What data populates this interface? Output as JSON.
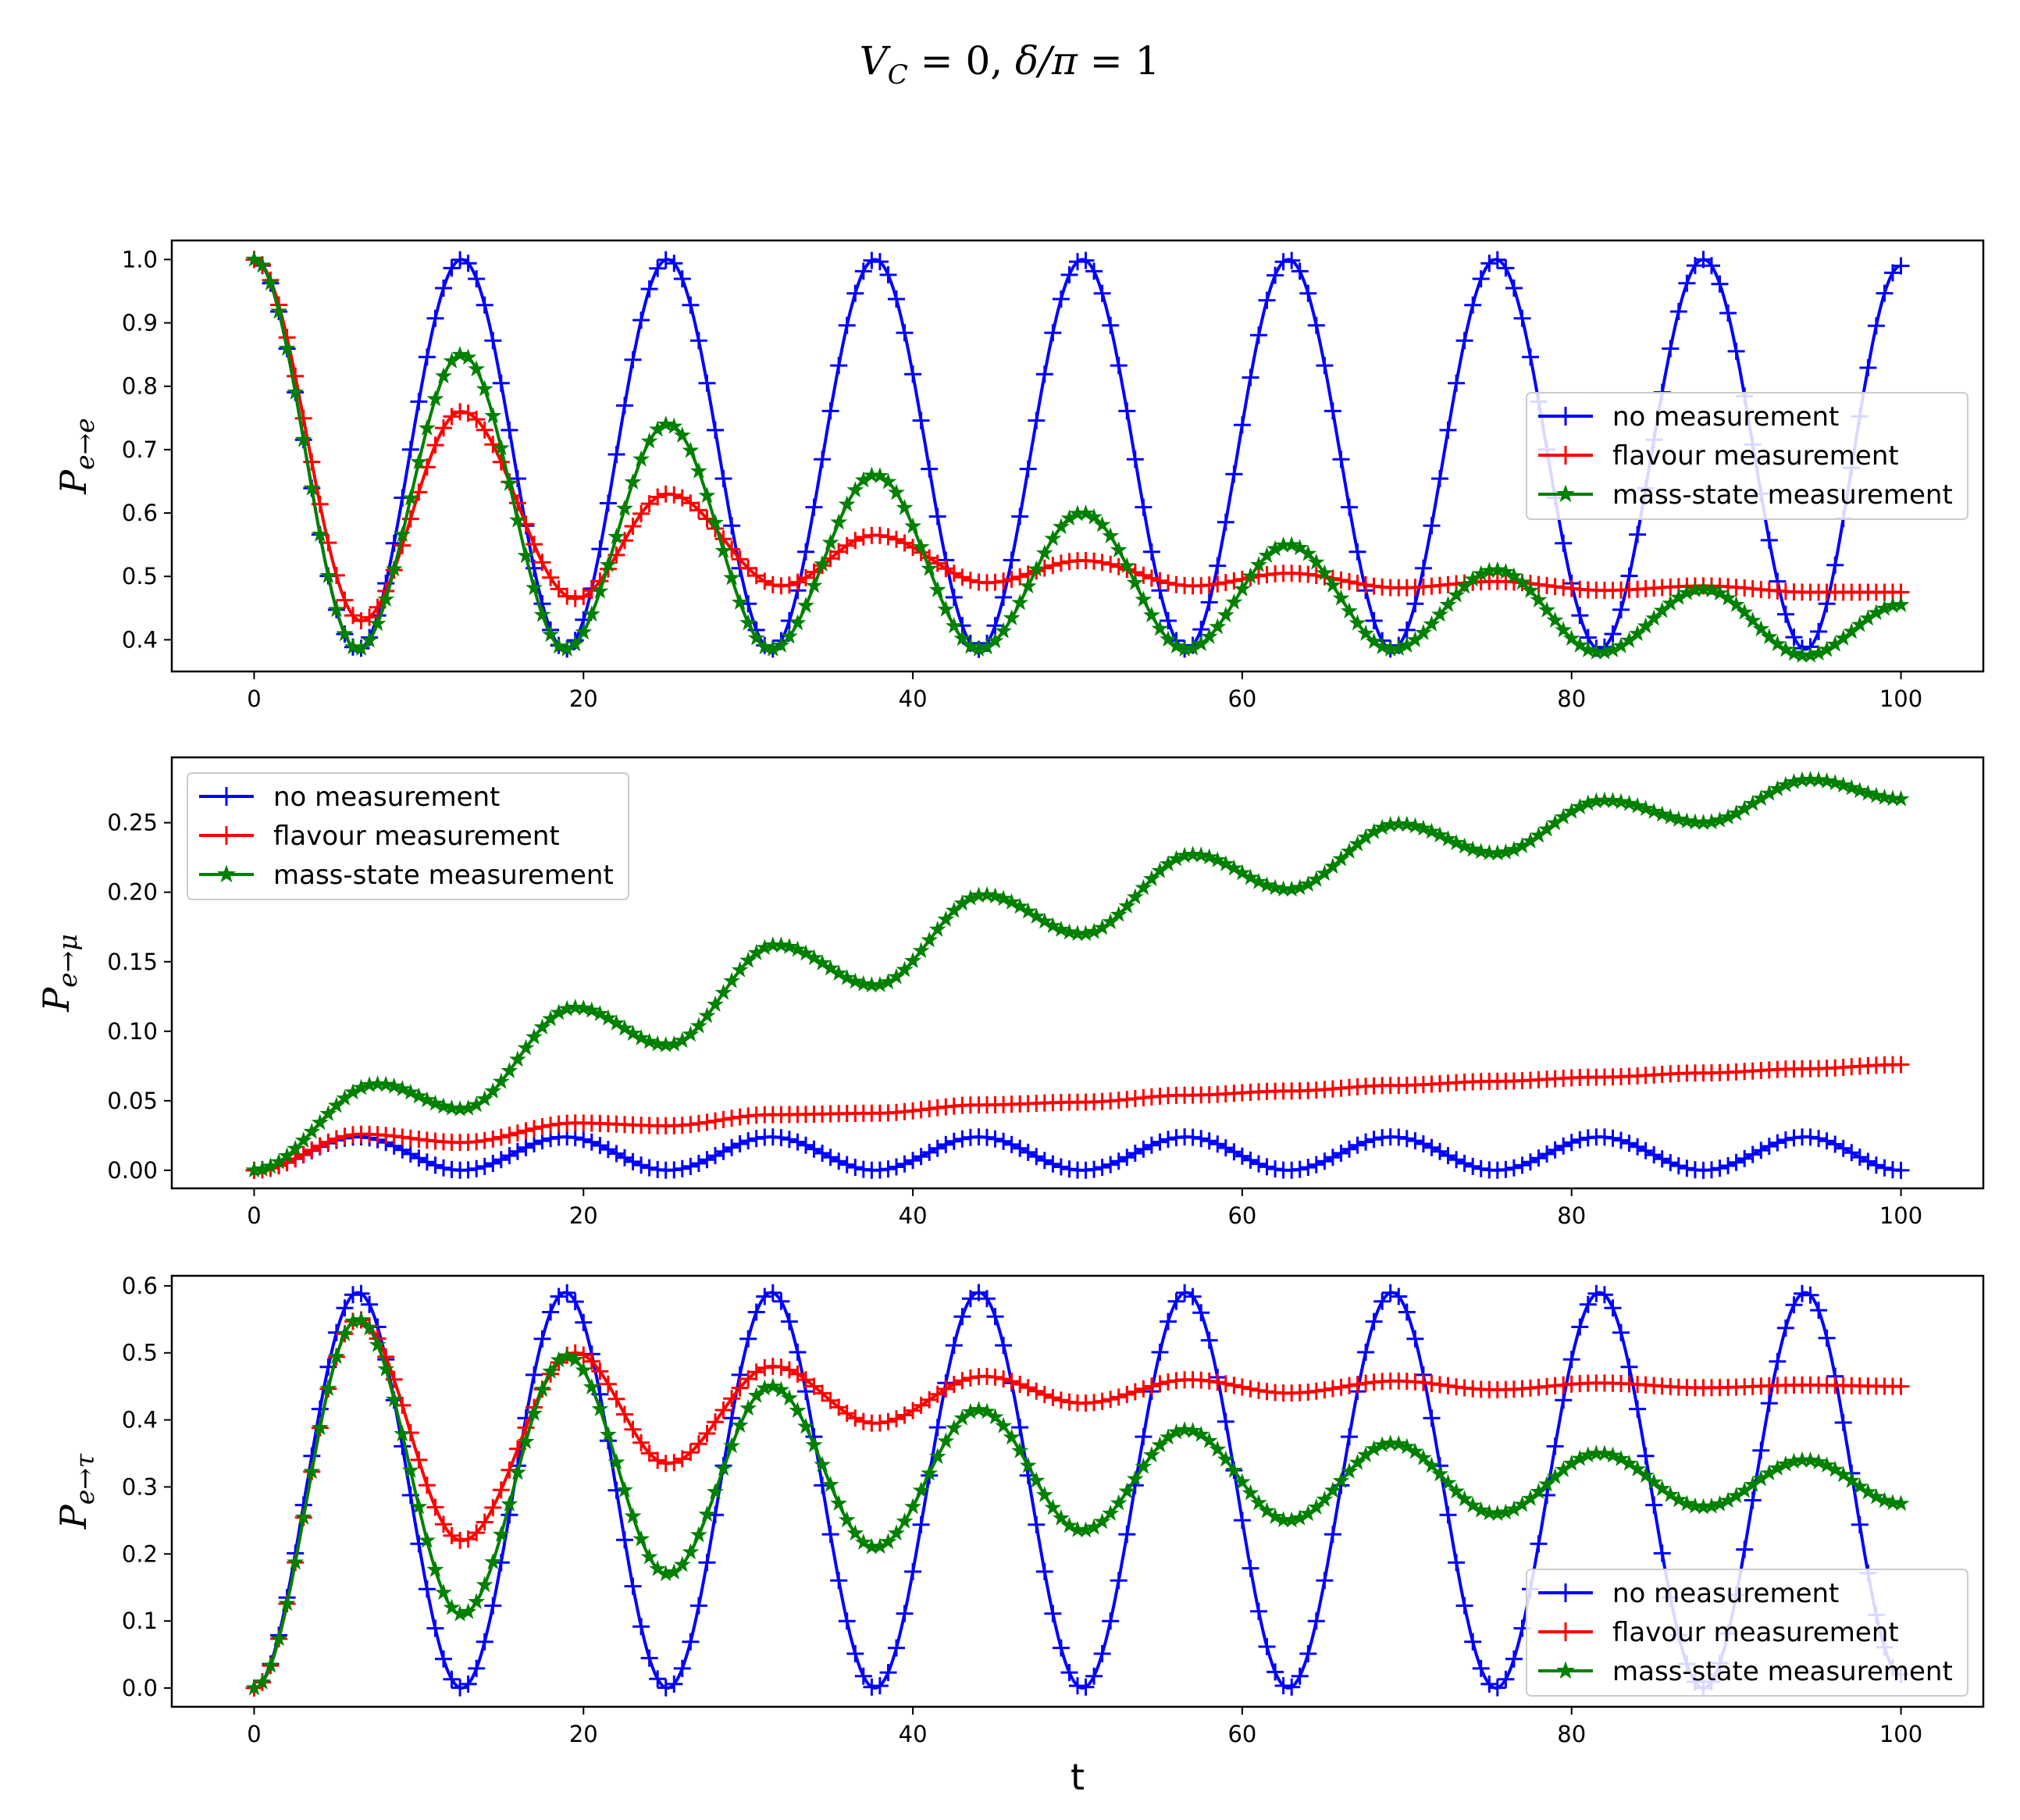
{
  "figure": {
    "title": {
      "V": "V",
      "V_sub": "C",
      "eq1": " = 0, ",
      "delta": "δ/π",
      "eq2": " = 1"
    },
    "xlabel": "t"
  },
  "colors": {
    "no_measurement": "#0000ff",
    "flavour_measurement": "#ff0000",
    "mass_state_measurement": "#008000"
  },
  "chart_data": [
    {
      "type": "line",
      "panel": "top",
      "ylabel": "P",
      "ylabel_sub": "e→e",
      "xlim": [
        -5,
        105
      ],
      "ylim": [
        0.35,
        1.03
      ],
      "xticks": [
        0,
        20,
        40,
        60,
        80,
        100
      ],
      "xtick_labels": [
        "0",
        "20",
        "40",
        "60",
        "80",
        "100"
      ],
      "yticks": [
        0.4,
        0.5,
        0.6,
        0.7,
        0.8,
        0.9,
        1.0
      ],
      "ytick_labels": [
        "0.4",
        "0.5",
        "0.6",
        "0.7",
        "0.8",
        "0.9",
        "1.0"
      ],
      "legend_position": "center-right",
      "legend": [
        "no measurement",
        "flavour measurement",
        "mass-state measurement"
      ],
      "series": [
        {
          "name": "no measurement",
          "color": "#0000ff",
          "marker": "plus",
          "x": [
            0,
            6.3,
            12.6,
            18.9,
            25.1,
            31.4,
            37.7,
            44.0,
            50.3,
            56.6,
            62.8,
            69.1,
            75.4,
            81.7,
            88.0,
            94.2,
            100
          ],
          "y": [
            1.0,
            0.385,
            1.0,
            0.385,
            1.0,
            0.385,
            1.0,
            0.385,
            1.0,
            0.385,
            1.0,
            0.385,
            1.0,
            0.385,
            1.0,
            0.385,
            0.99
          ]
        },
        {
          "name": "flavour measurement",
          "color": "#ff0000",
          "marker": "plus",
          "x": [
            0,
            6.5,
            12.6,
            19.5,
            25.1,
            32,
            37.7,
            44.5,
            50.3,
            57,
            62.8,
            69.5,
            75.4,
            82,
            88.0,
            94.5,
            100
          ],
          "y": [
            1.0,
            0.43,
            0.76,
            0.465,
            0.63,
            0.485,
            0.565,
            0.49,
            0.525,
            0.485,
            0.505,
            0.482,
            0.492,
            0.478,
            0.485,
            0.475,
            0.475
          ]
        },
        {
          "name": "mass-state measurement",
          "color": "#008000",
          "marker": "star",
          "x": [
            0,
            6.3,
            12.6,
            18.9,
            25.1,
            31.4,
            37.7,
            44.0,
            50.3,
            56.6,
            62.8,
            69.1,
            75.4,
            81.7,
            88.0,
            94.2,
            100
          ],
          "y": [
            1.0,
            0.385,
            0.85,
            0.385,
            0.74,
            0.385,
            0.66,
            0.385,
            0.6,
            0.385,
            0.55,
            0.385,
            0.51,
            0.38,
            0.48,
            0.375,
            0.455
          ]
        }
      ]
    },
    {
      "type": "line",
      "panel": "middle",
      "ylabel": "P",
      "ylabel_sub": "e→μ",
      "xlim": [
        -5,
        105
      ],
      "ylim": [
        -0.013,
        0.297
      ],
      "xticks": [
        0,
        20,
        40,
        60,
        80,
        100
      ],
      "xtick_labels": [
        "0",
        "20",
        "40",
        "60",
        "80",
        "100"
      ],
      "yticks": [
        0.0,
        0.05,
        0.1,
        0.15,
        0.2,
        0.25
      ],
      "ytick_labels": [
        "0.00",
        "0.05",
        "0.10",
        "0.15",
        "0.20",
        "0.25"
      ],
      "legend_position": "upper-left",
      "legend": [
        "no measurement",
        "flavour measurement",
        "mass-state measurement"
      ],
      "series": [
        {
          "name": "no measurement",
          "color": "#0000ff",
          "marker": "plus",
          "x": [
            0,
            6.3,
            12.6,
            18.9,
            25.1,
            31.4,
            37.7,
            44.0,
            50.3,
            56.6,
            62.8,
            69.1,
            75.4,
            81.7,
            88.0,
            94.2,
            100
          ],
          "y": [
            0.0,
            0.024,
            0.0,
            0.024,
            0.0,
            0.024,
            0.0,
            0.024,
            0.0,
            0.024,
            0.0,
            0.024,
            0.0,
            0.024,
            0.0,
            0.024,
            0.0
          ]
        },
        {
          "name": "flavour measurement",
          "color": "#ff0000",
          "marker": "plus",
          "x": [
            0,
            6.5,
            12.6,
            19.5,
            25.1,
            31.4,
            37.7,
            44.0,
            50.3,
            56.6,
            62.8,
            69.1,
            75.4,
            81.7,
            88.0,
            94.2,
            100
          ],
          "y": [
            0.0,
            0.026,
            0.02,
            0.034,
            0.032,
            0.04,
            0.041,
            0.047,
            0.049,
            0.054,
            0.057,
            0.061,
            0.064,
            0.067,
            0.07,
            0.073,
            0.076
          ]
        },
        {
          "name": "mass-state measurement",
          "color": "#008000",
          "marker": "star",
          "x": [
            0,
            7.5,
            12.6,
            19.5,
            25.1,
            31.7,
            37.7,
            44.3,
            50.3,
            57,
            62.8,
            69.5,
            75.4,
            82,
            88.0,
            94.5,
            100
          ],
          "y": [
            0.0,
            0.062,
            0.044,
            0.117,
            0.09,
            0.162,
            0.133,
            0.198,
            0.17,
            0.227,
            0.202,
            0.249,
            0.228,
            0.266,
            0.25,
            0.281,
            0.267
          ]
        }
      ]
    },
    {
      "type": "line",
      "panel": "bottom",
      "ylabel": "P",
      "ylabel_sub": "e→τ",
      "xlim": [
        -5,
        105
      ],
      "ylim": [
        -0.028,
        0.615
      ],
      "xticks": [
        0,
        20,
        40,
        60,
        80,
        100
      ],
      "xtick_labels": [
        "0",
        "20",
        "40",
        "60",
        "80",
        "100"
      ],
      "yticks": [
        0.0,
        0.1,
        0.2,
        0.3,
        0.4,
        0.5,
        0.6
      ],
      "ytick_labels": [
        "0.0",
        "0.1",
        "0.2",
        "0.3",
        "0.4",
        "0.5",
        "0.6"
      ],
      "legend_position": "lower-right",
      "legend": [
        "no measurement",
        "flavour measurement",
        "mass-state measurement"
      ],
      "series": [
        {
          "name": "no measurement",
          "color": "#0000ff",
          "marker": "plus",
          "x": [
            0,
            6.3,
            12.6,
            18.9,
            25.1,
            31.4,
            37.7,
            44.0,
            50.3,
            56.6,
            62.8,
            69.1,
            75.4,
            81.7,
            88.0,
            94.2,
            100
          ],
          "y": [
            0.0,
            0.59,
            0.0,
            0.59,
            0.0,
            0.59,
            0.0,
            0.59,
            0.0,
            0.59,
            0.0,
            0.59,
            0.0,
            0.59,
            0.0,
            0.59,
            0.02
          ]
        },
        {
          "name": "flavour measurement",
          "color": "#ff0000",
          "marker": "plus",
          "x": [
            0,
            6.3,
            12.6,
            19.5,
            25.1,
            31.5,
            37.7,
            44.3,
            50.3,
            56.8,
            62.8,
            69.3,
            75.4,
            81.7,
            88.0,
            94.2,
            100
          ],
          "y": [
            0.0,
            0.55,
            0.22,
            0.5,
            0.335,
            0.48,
            0.395,
            0.465,
            0.425,
            0.46,
            0.44,
            0.458,
            0.445,
            0.455,
            0.448,
            0.452,
            0.45
          ]
        },
        {
          "name": "mass-state measurement",
          "color": "#008000",
          "marker": "star",
          "x": [
            0,
            6.3,
            12.6,
            19.0,
            25.1,
            31.4,
            37.7,
            44.0,
            50.3,
            56.6,
            62.8,
            69.1,
            75.4,
            81.7,
            88.0,
            94.2,
            100
          ],
          "y": [
            0.0,
            0.55,
            0.11,
            0.495,
            0.17,
            0.45,
            0.21,
            0.415,
            0.235,
            0.385,
            0.25,
            0.365,
            0.26,
            0.35,
            0.27,
            0.34,
            0.275
          ]
        }
      ]
    }
  ]
}
